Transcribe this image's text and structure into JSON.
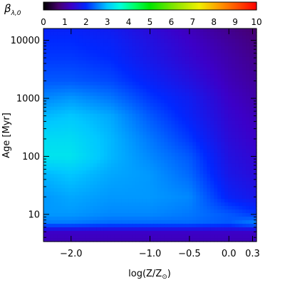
{
  "chart_data": {
    "type": "heatmap",
    "colorbar": {
      "label": "β",
      "label_subscript": "λ,0",
      "range": [
        0,
        10
      ],
      "ticks": [
        "0",
        "1",
        "2",
        "3",
        "4",
        "5",
        "6",
        "7",
        "8",
        "9",
        "10"
      ],
      "placement": "top",
      "colormap": "rainbow (black-purple-blue-cyan-green-yellow-orange-red)"
    },
    "x_axis": {
      "label": "log(Z/Z",
      "label_subscript": "⊙",
      "label_close": ")",
      "ticks": [
        {
          "value": -2.0,
          "label": "−2.0"
        },
        {
          "value": -1.0,
          "label": "−1.0"
        },
        {
          "value": -0.5,
          "label": "−0.5"
        },
        {
          "value": 0.0,
          "label": "0.0"
        },
        {
          "value": 0.3,
          "label": "0.3"
        }
      ],
      "range": [
        -2.35,
        0.35
      ]
    },
    "y_axis": {
      "label": "Age [Myr]",
      "scale": "log",
      "ticks": [
        {
          "value": 10,
          "label": "10"
        },
        {
          "value": 100,
          "label": "100"
        },
        {
          "value": 1000,
          "label": "1000"
        },
        {
          "value": 10000,
          "label": "10000"
        }
      ],
      "range": [
        3.4,
        16000
      ]
    },
    "z_samples": {
      "description_of_axes": "rows are ages (Myr), columns are log(Z/Zsun); values are beta estimated from colour",
      "x": [
        -2.35,
        -2.0,
        -1.5,
        -1.0,
        -0.5,
        0.0,
        0.35
      ],
      "y": [
        3.4,
        5,
        7,
        10,
        20,
        50,
        100,
        200,
        500,
        1000,
        2000,
        5000,
        10000,
        16000
      ],
      "z": [
        [
          1.2,
          1.2,
          1.2,
          1.2,
          1.2,
          1.2,
          1.2
        ],
        [
          1.3,
          1.3,
          1.3,
          1.3,
          1.3,
          1.3,
          1.3
        ],
        [
          2.5,
          2.5,
          2.4,
          2.4,
          2.4,
          2.3,
          2.6
        ],
        [
          2.7,
          2.7,
          2.6,
          2.6,
          2.5,
          2.3,
          2.1
        ],
        [
          2.7,
          2.8,
          2.7,
          2.7,
          2.6,
          1.9,
          1.7
        ],
        [
          2.9,
          3.0,
          2.8,
          2.7,
          2.4,
          1.7,
          1.5
        ],
        [
          3.3,
          3.3,
          2.9,
          2.6,
          2.3,
          1.6,
          1.4
        ],
        [
          3.2,
          3.2,
          2.9,
          2.5,
          2.1,
          1.5,
          1.3
        ],
        [
          2.9,
          3.0,
          2.8,
          2.3,
          1.9,
          1.4,
          1.2
        ],
        [
          2.6,
          2.7,
          2.5,
          2.1,
          1.8,
          1.3,
          1.1
        ],
        [
          2.3,
          2.3,
          2.2,
          1.9,
          1.6,
          1.2,
          1.0
        ],
        [
          2.1,
          2.1,
          2.0,
          1.7,
          1.4,
          1.1,
          0.9
        ],
        [
          2.0,
          2.0,
          1.9,
          1.6,
          1.3,
          1.0,
          0.8
        ],
        [
          1.9,
          1.9,
          1.8,
          1.5,
          1.2,
          0.9,
          0.7
        ]
      ]
    }
  }
}
